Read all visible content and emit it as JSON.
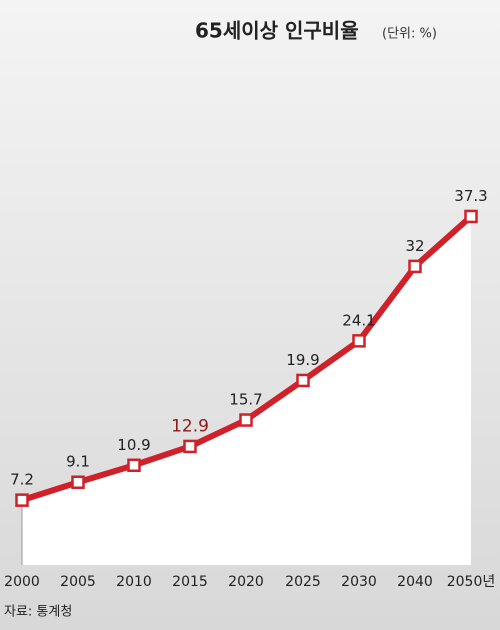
{
  "chart_data": {
    "type": "line",
    "title": "65세이상 인구비율",
    "subtitle": "(단위: %)",
    "source": "자료: 통계청",
    "categories": [
      "2000",
      "2005",
      "2010",
      "2015",
      "2020",
      "2025",
      "2030",
      "2040",
      "2050년"
    ],
    "values": [
      7.2,
      9.1,
      10.9,
      12.9,
      15.7,
      19.9,
      24.1,
      32,
      37.3
    ],
    "value_label_colors": [
      "#222222",
      "#222222",
      "#222222",
      "#8b1a1a",
      "#222222",
      "#222222",
      "#222222",
      "#222222",
      "#222222"
    ],
    "color": "#d0202a",
    "ylim": [
      0,
      40
    ]
  }
}
